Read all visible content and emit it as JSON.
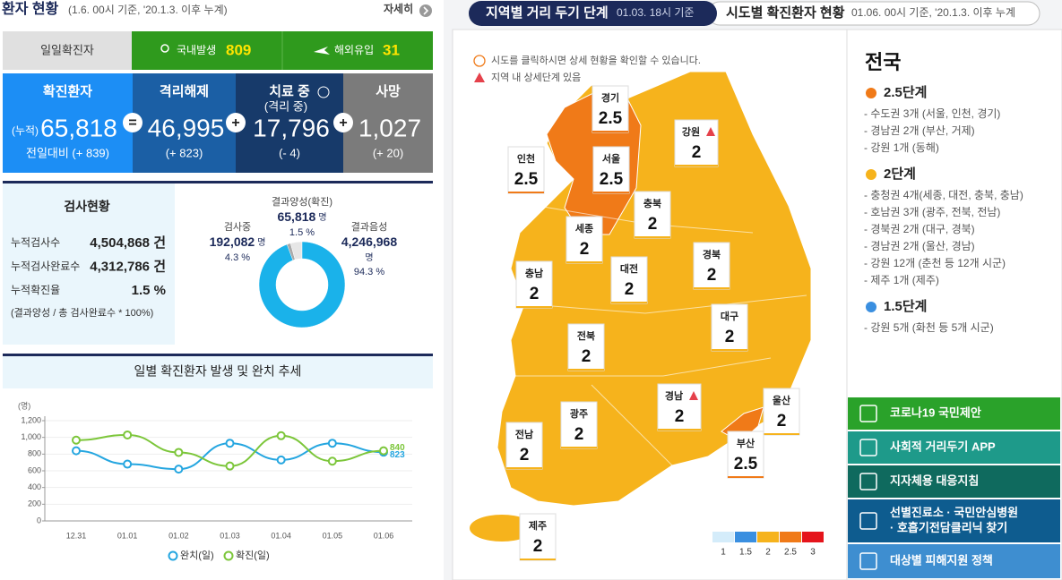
{
  "header": {
    "title": "환자 현황",
    "subtitle": "(1.6. 00시 기준, '20.1.3. 이후 누계)",
    "more": "자세히"
  },
  "daily": {
    "label": "일일확진자",
    "domestic_label": "국내발생",
    "domestic": "809",
    "overseas_label": "해외유입",
    "overseas": "31"
  },
  "summary": [
    {
      "label": "확진환자",
      "prefix": "(누적)",
      "value": "65,818",
      "change": "전일대비 (+ 839)"
    },
    {
      "label": "격리해제",
      "value": "46,995",
      "change": "(+ 823)"
    },
    {
      "label": "치료 중",
      "sublabel": "(격리 중)",
      "value": "17,796",
      "change": "(- 4)"
    },
    {
      "label": "사망",
      "value": "1,027",
      "change": "(+ 20)"
    }
  ],
  "summary_operators": [
    "=",
    "+",
    "+"
  ],
  "tests": {
    "title": "검사현황",
    "rows": [
      [
        "누적검사수",
        "4,504,868 건"
      ],
      [
        "누적검사완료수",
        "4,312,786 건"
      ],
      [
        "누적확진율",
        "1.5 %"
      ]
    ],
    "note": "(결과양성 / 총 검사완료수 * 100%)"
  },
  "chart_data": [
    {
      "type": "pie",
      "donut": true,
      "categories": [
        "결과양성(확진)",
        "검사중",
        "결과음성"
      ],
      "counts": [
        "65,818",
        "192,082",
        "4,246,968"
      ],
      "unit": "명",
      "values": [
        1.5,
        4.3,
        94.3
      ],
      "value_labels": [
        "1.5 %",
        "4.3 %",
        "94.3 %"
      ],
      "colors": [
        "#a9a9a9",
        "#e6e6e6",
        "#1ab2ea"
      ]
    },
    {
      "type": "line",
      "title": "일별 확진환자 발생 및 완치 추세",
      "y_label": "(명)",
      "categories": [
        "12.31",
        "01.01",
        "01.02",
        "01.03",
        "01.04",
        "01.05",
        "01.06"
      ],
      "ylim": [
        0,
        1200
      ],
      "yticks": [
        0,
        200,
        400,
        600,
        800,
        {
          "value": 1000,
          "label": "1,000"
        },
        {
          "value": 1200,
          "label": "1,200"
        }
      ],
      "grid": true,
      "series": [
        {
          "name": "완치(일)",
          "color": "#25a6e0",
          "values": [
            840,
            680,
            620,
            930,
            730,
            930,
            823
          ]
        },
        {
          "name": "확진(일)",
          "color": "#7cc63a",
          "values": [
            967,
            1029,
            820,
            657,
            1020,
            715,
            840
          ]
        }
      ]
    }
  ],
  "map": {
    "tabs": [
      {
        "title": "지역별 거리 두기 단계",
        "time": "01.03. 18시 기준"
      },
      {
        "title": "시도별 확진환자 현황",
        "time": "01.06. 00시 기준, '20.1.3. 이후 누계"
      }
    ],
    "notes": [
      "시도를 클릭하시면 상세 현황을 확인할 수 있습니다.",
      "지역 내 상세단계 있음"
    ],
    "regions": [
      {
        "name": "경기",
        "level": 2.5
      },
      {
        "name": "인천",
        "level": 2.5
      },
      {
        "name": "서울",
        "level": 2.5
      },
      {
        "name": "강원",
        "level": 2,
        "warning": true
      },
      {
        "name": "충북",
        "level": 2
      },
      {
        "name": "세종",
        "level": 2
      },
      {
        "name": "경북",
        "level": 2
      },
      {
        "name": "대전",
        "level": 2
      },
      {
        "name": "충남",
        "level": 2
      },
      {
        "name": "대구",
        "level": 2
      },
      {
        "name": "전북",
        "level": 2
      },
      {
        "name": "경남",
        "level": 2,
        "warning": true
      },
      {
        "name": "울산",
        "level": 2
      },
      {
        "name": "광주",
        "level": 2
      },
      {
        "name": "전남",
        "level": 2
      },
      {
        "name": "부산",
        "level": 2.5
      },
      {
        "name": "제주",
        "level": 2
      }
    ],
    "scale": {
      "levels": [
        1,
        1.5,
        2,
        2.5,
        3
      ],
      "colors": [
        "#d4ecfa",
        "#3a8fe0",
        "#f6b31c",
        "#f07a18",
        "#e5141b"
      ]
    }
  },
  "national": {
    "title": "전국",
    "stages": [
      {
        "label": "2.5단계",
        "level": 2.5,
        "items": [
          "- 수도권 3개 (서울, 인천, 경기)",
          "- 경남권 2개 (부산, 거제)",
          "- 강원 1개 (동해)"
        ]
      },
      {
        "label": "2단계",
        "level": 2,
        "items": [
          "- 충청권 4개(세종, 대전, 충북, 충남)",
          "- 호남권 3개 (광주, 전북, 전남)",
          "- 경북권 2개 (대구, 경북)",
          "- 경남권 2개 (울산, 경남)",
          "- 강원 12개 (춘천 등 12개 시군)",
          "- 제주 1개 (제주)"
        ]
      },
      {
        "label": "1.5단계",
        "level": 1.5,
        "items": [
          "- 강원 5개 (화천 등 5개 시군)"
        ]
      }
    ]
  },
  "buttons": [
    {
      "lines": [
        "코로나19 국민제안"
      ]
    },
    {
      "lines": [
        "사회적 거리두기 APP"
      ]
    },
    {
      "lines": [
        "지자체용 대응지침"
      ]
    },
    {
      "lines": [
        "선별진료소 · 국민안심병원",
        "· 호흡기전담클리닉 찾기"
      ]
    },
    {
      "lines": [
        "대상별 피해지원 정책"
      ]
    }
  ]
}
